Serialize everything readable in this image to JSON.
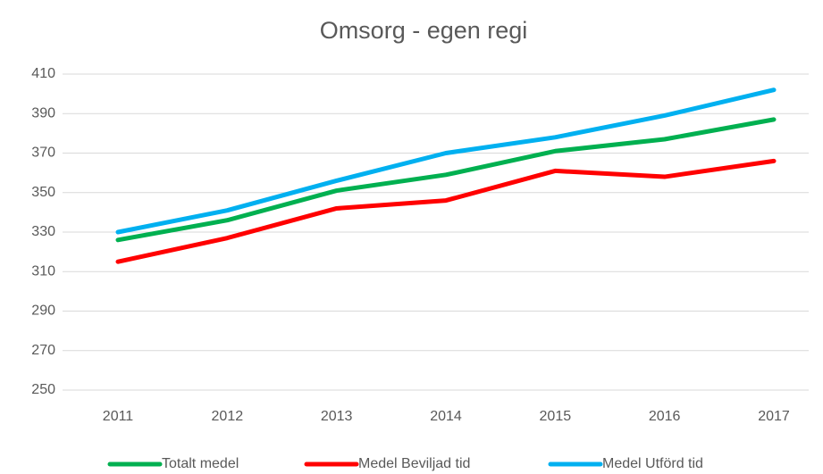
{
  "chart_data": {
    "type": "line",
    "title": "Omsorg - egen regi",
    "categories": [
      "2011",
      "2012",
      "2013",
      "2014",
      "2015",
      "2016",
      "2017"
    ],
    "series": [
      {
        "name": "Totalt medel",
        "color": "#00b050",
        "values": [
          326,
          336,
          351,
          359,
          371,
          377,
          387
        ]
      },
      {
        "name": "Medel Beviljad tid",
        "color": "#ff0000",
        "values": [
          315,
          327,
          342,
          346,
          361,
          358,
          366
        ]
      },
      {
        "name": "Medel Utförd tid",
        "color": "#00b0f0",
        "values": [
          330,
          341,
          356,
          370,
          378,
          389,
          402
        ]
      }
    ],
    "ylim": [
      250,
      410
    ],
    "yticks": [
      250,
      270,
      290,
      310,
      330,
      350,
      370,
      390,
      410
    ],
    "grid": true,
    "legend": "bottom"
  }
}
